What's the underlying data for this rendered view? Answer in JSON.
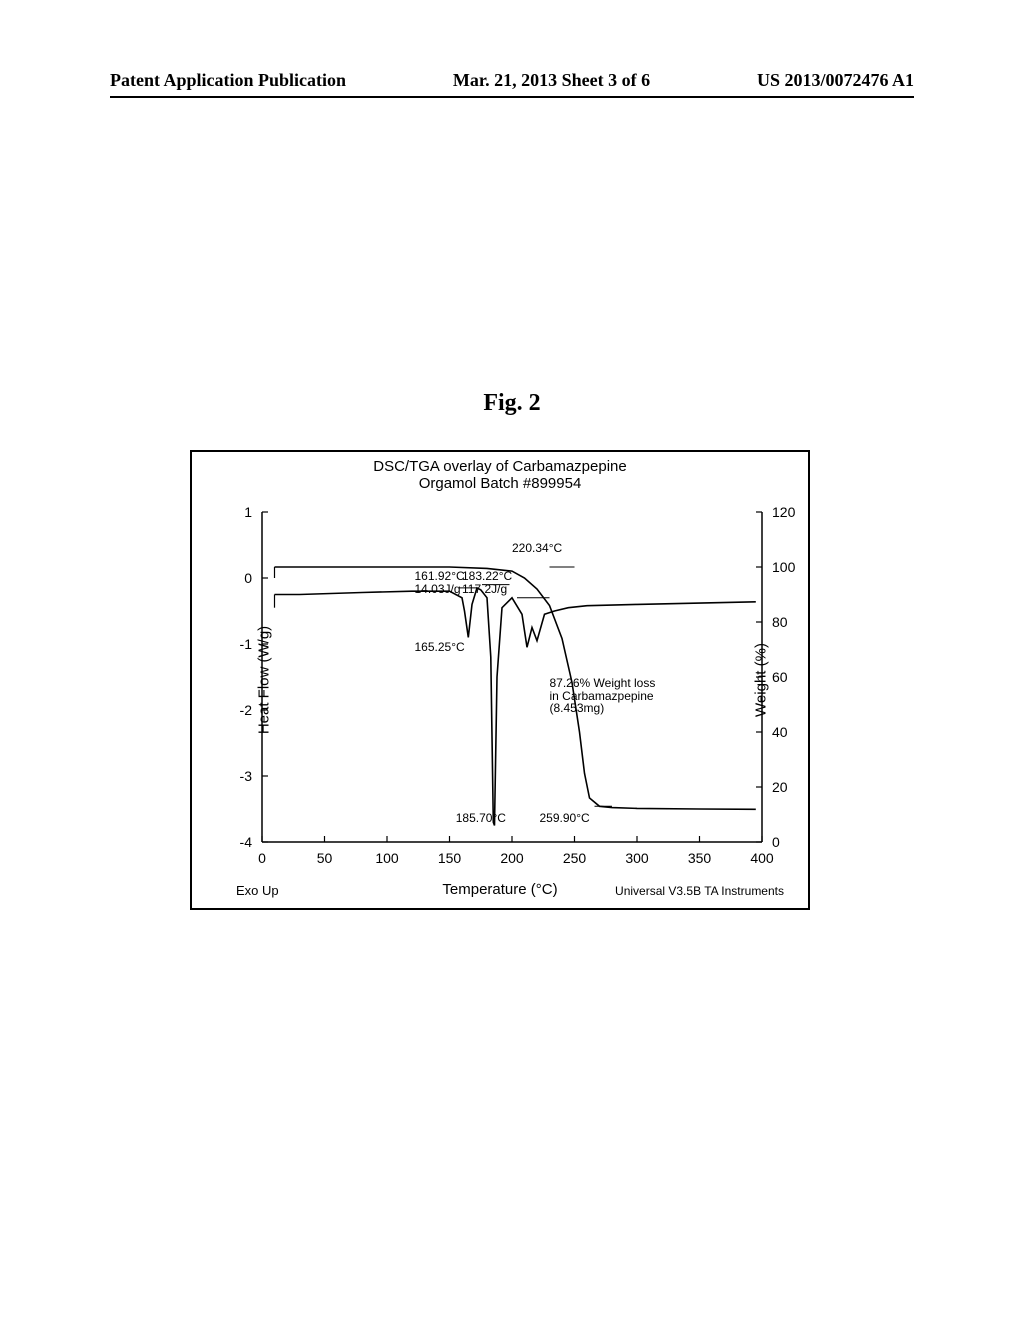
{
  "header": {
    "left": "Patent Application Publication",
    "center": "Mar. 21, 2013  Sheet 3 of 6",
    "right": "US 2013/0072476 A1"
  },
  "figure_label": "Fig. 2",
  "chart": {
    "title_line1": "DSC/TGA overlay of Carbamazpepine",
    "title_line2": "Orgamol Batch #899954",
    "left_axis": {
      "label": "Heat Flow (W/g)",
      "min": -4,
      "max": 1,
      "ticks": [
        -4,
        -3,
        -2,
        -1,
        0,
        1
      ]
    },
    "right_axis": {
      "label": "Weight (%)",
      "min": 0,
      "max": 120,
      "ticks": [
        0,
        20,
        40,
        60,
        80,
        100,
        120
      ]
    },
    "x_axis": {
      "label": "Temperature (°C)",
      "min": 0,
      "max": 400,
      "ticks": [
        0,
        50,
        100,
        150,
        200,
        250,
        300,
        350,
        400
      ]
    },
    "corner_left": "Exo Up",
    "corner_right": "Universal V3.5B TA Instruments",
    "annotations": {
      "a1": "161.92°C\n14.03J/g",
      "a2": "183.22°C\n117.2J/g",
      "a3": "220.34°C",
      "a4": "165.25°C",
      "a5": "185.70°C",
      "a6": "259.90°C",
      "a7": "87.26% Weight loss\nin Carbamazpepine\n(8.453mg)"
    },
    "dsc_curve": [
      [
        10,
        -0.25
      ],
      [
        30,
        -0.25
      ],
      [
        80,
        -0.22
      ],
      [
        120,
        -0.2
      ],
      [
        150,
        -0.2
      ],
      [
        160,
        -0.3
      ],
      [
        162,
        -0.5
      ],
      [
        165,
        -0.9
      ],
      [
        168,
        -0.4
      ],
      [
        172,
        -0.15
      ],
      [
        175,
        -0.18
      ],
      [
        180,
        -0.3
      ],
      [
        183,
        -1.2
      ],
      [
        185,
        -3.7
      ],
      [
        186,
        -3.75
      ],
      [
        188,
        -1.5
      ],
      [
        192,
        -0.45
      ],
      [
        200,
        -0.3
      ],
      [
        208,
        -0.55
      ],
      [
        212,
        -1.05
      ],
      [
        216,
        -0.75
      ],
      [
        220,
        -0.95
      ],
      [
        226,
        -0.55
      ],
      [
        234,
        -0.5
      ],
      [
        245,
        -0.45
      ],
      [
        260,
        -0.42
      ],
      [
        300,
        -0.4
      ],
      [
        350,
        -0.38
      ],
      [
        395,
        -0.36
      ]
    ],
    "tga_curve": [
      [
        10,
        100
      ],
      [
        60,
        100
      ],
      [
        100,
        100
      ],
      [
        150,
        100
      ],
      [
        180,
        99.5
      ],
      [
        200,
        98.5
      ],
      [
        210,
        96
      ],
      [
        220,
        92
      ],
      [
        230,
        86
      ],
      [
        240,
        74
      ],
      [
        248,
        58
      ],
      [
        254,
        40
      ],
      [
        258,
        25
      ],
      [
        262,
        16
      ],
      [
        270,
        13
      ],
      [
        280,
        12.5
      ],
      [
        300,
        12.2
      ],
      [
        350,
        12.0
      ],
      [
        395,
        11.9
      ]
    ],
    "dsc_onset_segments": [
      [
        [
          158,
          -0.15
        ],
        [
          172,
          -0.15
        ]
      ],
      [
        [
          176,
          -0.1
        ],
        [
          198,
          -0.1
        ]
      ],
      [
        [
          204,
          -0.3
        ],
        [
          230,
          -0.3
        ]
      ]
    ],
    "tga_markers": [
      [
        [
          266,
          13.0
        ],
        [
          280,
          13.0
        ]
      ],
      [
        [
          230,
          100
        ],
        [
          250,
          100
        ]
      ]
    ],
    "colors": {
      "line": "#000000",
      "axis": "#000000",
      "bg": "#ffffff"
    }
  }
}
